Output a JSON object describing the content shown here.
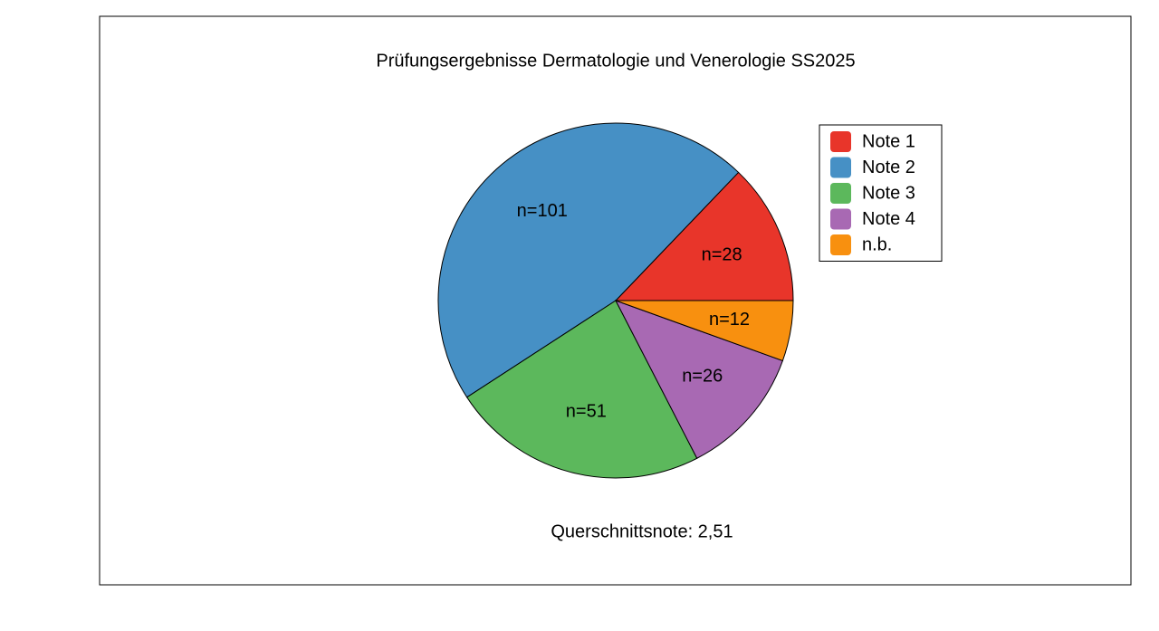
{
  "chart_data": {
    "type": "pie",
    "title": "Prüfungsergebnisse Dermatologie und Venerologie SS2025",
    "categories": [
      "Note 1",
      "Note 2",
      "Note 3",
      "Note 4",
      "n.b."
    ],
    "values": [
      28,
      101,
      51,
      26,
      12
    ],
    "value_labels": [
      "n=28",
      "n=101",
      "n=51",
      "n=26",
      "n=12"
    ],
    "colors": [
      "#e8352a",
      "#4690c5",
      "#5cb85c",
      "#a869b3",
      "#f8900f"
    ],
    "annotation": "Querschnittsnote: 2,51",
    "legend": "right"
  }
}
